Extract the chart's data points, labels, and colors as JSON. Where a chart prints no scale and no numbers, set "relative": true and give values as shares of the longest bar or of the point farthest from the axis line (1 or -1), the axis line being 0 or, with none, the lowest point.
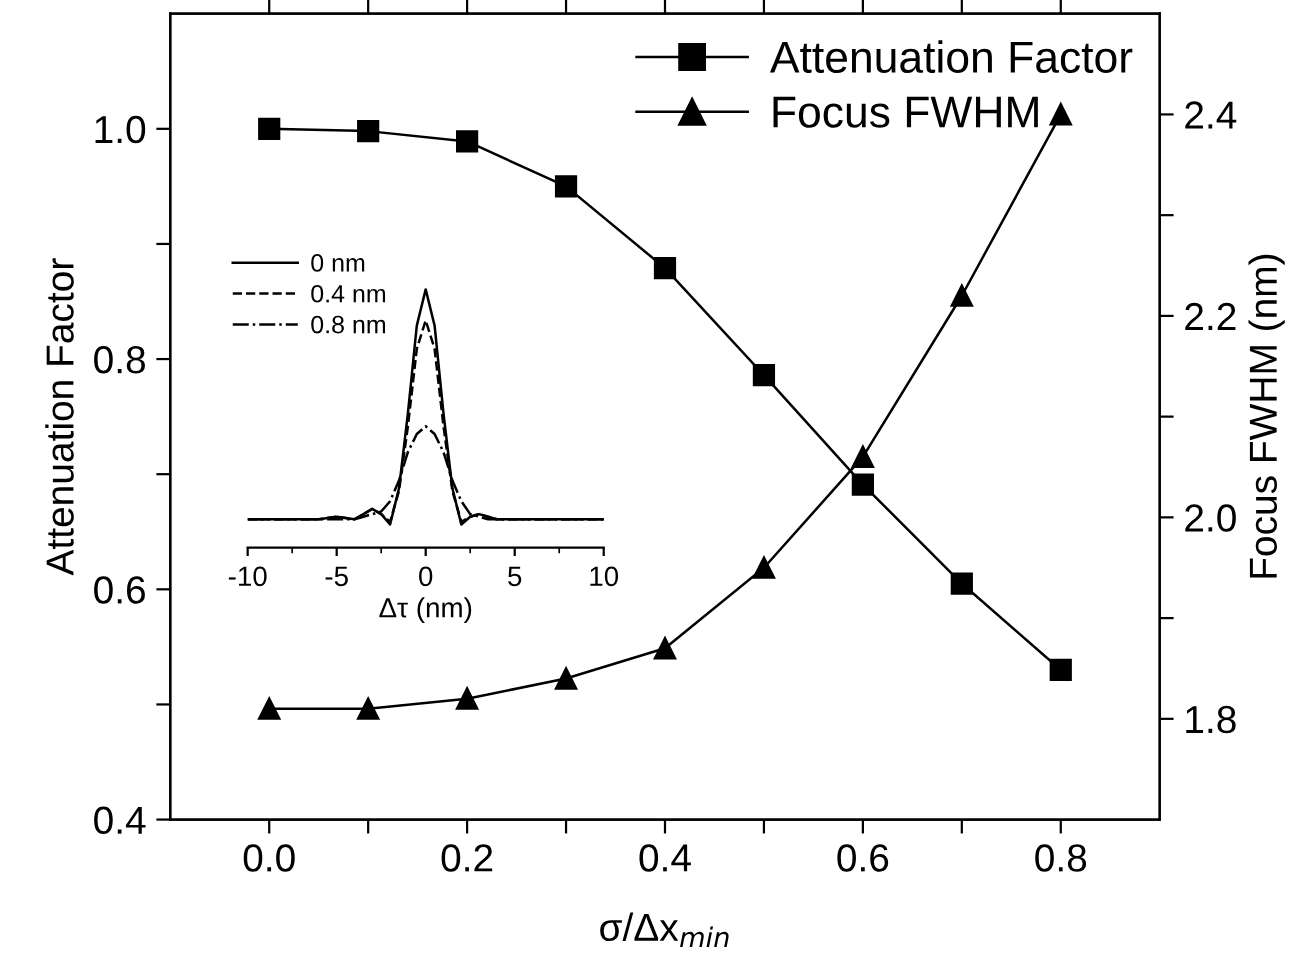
{
  "chart_data": [
    {
      "type": "line",
      "xlabel": "σ/Δx$_{min}$",
      "ylabel": "Attenuation Factor",
      "y2label": "Focus FWHM (nm)",
      "x": [
        0.0,
        0.1,
        0.2,
        0.3,
        0.4,
        0.5,
        0.6,
        0.7,
        0.8
      ],
      "xlim": [
        -0.1,
        0.9
      ],
      "xticks": [
        {
          "value": 0.0,
          "label": "0.0"
        },
        {
          "value": 0.1,
          "label": null
        },
        0.2,
        {
          "value": 0.3,
          "label": null
        },
        0.4,
        {
          "value": 0.5,
          "label": null
        },
        0.6,
        {
          "value": 0.7,
          "label": null
        },
        0.8
      ],
      "ylim": [
        0.4,
        1.1
      ],
      "yticks": [
        0.4,
        {
          "value": 0.5,
          "label": null
        },
        0.6,
        {
          "value": 0.7,
          "label": null
        },
        0.8,
        {
          "value": 0.9,
          "label": null
        },
        {
          "value": 1.0,
          "label": "1.0"
        }
      ],
      "y2lim": [
        1.7,
        2.5
      ],
      "y2ticks": [
        1.8,
        {
          "value": 1.9,
          "label": null
        },
        {
          "value": 2.0,
          "label": "2.0"
        },
        {
          "value": 2.1,
          "label": null
        },
        2.2,
        {
          "value": 2.3,
          "label": null
        },
        2.4
      ],
      "legend": "top right",
      "grid": false,
      "line_style": "solid",
      "series": [
        {
          "name": "Attenuation Factor",
          "color": "#000000",
          "marker": "square",
          "values": [
            1.0,
            0.998,
            0.989,
            0.95,
            0.879,
            0.786,
            0.691,
            0.605,
            0.53
          ]
        },
        {
          "name": "Focus FWHM",
          "color": "#000000",
          "marker": "triangle",
          "axis": "y2",
          "values": [
            1.81,
            1.81,
            1.82,
            1.84,
            1.87,
            1.95,
            2.06,
            2.22,
            2.4
          ]
        }
      ]
    },
    {
      "type": "line",
      "relative": true,
      "xlabel": "Δτ (nm)",
      "xlim": [
        -10,
        10
      ],
      "xticks": [
        -10,
        -5,
        0,
        5,
        10
      ],
      "legend": "top left",
      "grid": false,
      "marker": "none",
      "tick_labels": "x",
      "x": [
        -10,
        -8,
        -6,
        -5,
        -4,
        -3.5,
        -3,
        -2.5,
        -2,
        -1.5,
        -1,
        -0.5,
        0,
        0.5,
        1,
        1.5,
        2,
        2.5,
        3,
        3.5,
        4,
        5,
        6,
        8,
        10
      ],
      "series": [
        {
          "name": "0 nm",
          "color": "#000000",
          "line_style": "solid",
          "values": [
            0.11,
            0.11,
            0.11,
            0.12,
            0.11,
            0.13,
            0.15,
            0.13,
            0.09,
            0.23,
            0.52,
            0.86,
            1.0,
            0.86,
            0.52,
            0.23,
            0.09,
            0.12,
            0.13,
            0.12,
            0.11,
            0.11,
            0.11,
            0.11,
            0.11
          ]
        },
        {
          "name": "0.4 nm",
          "color": "#000000",
          "line_style": "dashed",
          "values": [
            0.11,
            0.11,
            0.11,
            0.12,
            0.11,
            0.13,
            0.15,
            0.13,
            0.1,
            0.22,
            0.47,
            0.77,
            0.88,
            0.77,
            0.47,
            0.22,
            0.1,
            0.12,
            0.13,
            0.12,
            0.11,
            0.11,
            0.11,
            0.11,
            0.11
          ]
        },
        {
          "name": "0.8 nm",
          "color": "#000000",
          "line_style": "dotted",
          "values": [
            0.11,
            0.11,
            0.11,
            0.11,
            0.11,
            0.12,
            0.13,
            0.14,
            0.18,
            0.26,
            0.37,
            0.44,
            0.47,
            0.44,
            0.37,
            0.26,
            0.18,
            0.13,
            0.12,
            0.11,
            0.11,
            0.11,
            0.11,
            0.11,
            0.11
          ]
        }
      ]
    }
  ]
}
